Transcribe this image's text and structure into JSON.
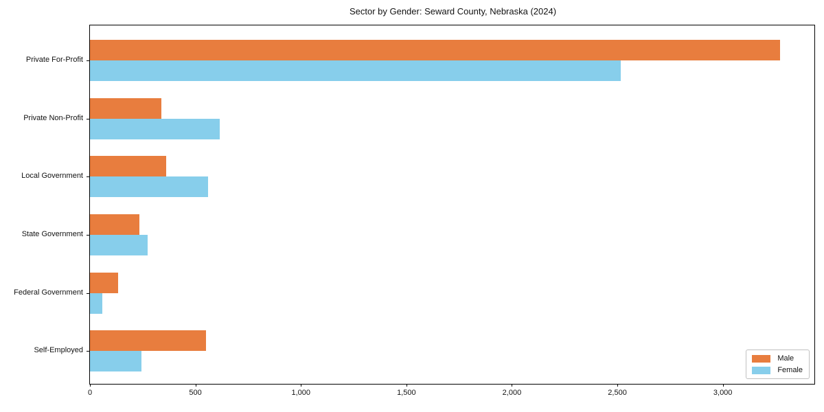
{
  "chart_data": {
    "type": "bar",
    "orientation": "horizontal",
    "title": "Sector by Gender: Seward County, Nebraska (2024)",
    "categories": [
      "Private For-Profit",
      "Private Non-Profit",
      "Local Government",
      "State Government",
      "Federal Government",
      "Self-Employed"
    ],
    "series": [
      {
        "name": "Male",
        "color": "#e87d3e",
        "values": [
          3270,
          340,
          360,
          235,
          135,
          550
        ]
      },
      {
        "name": "Female",
        "color": "#87ceeb",
        "values": [
          2515,
          615,
          560,
          275,
          60,
          245
        ]
      }
    ],
    "xlabel": "",
    "ylabel": "",
    "xlim": [
      0,
      3434
    ],
    "xticks": [
      0,
      500,
      1000,
      1500,
      2000,
      2500,
      3000
    ],
    "xtick_labels": [
      "0",
      "500",
      "1,000",
      "1,500",
      "2,000",
      "2,500",
      "3,000"
    ],
    "grid": false,
    "legend_position": "lower right",
    "background_color": "#ffffff",
    "spine_color": "#000000"
  }
}
